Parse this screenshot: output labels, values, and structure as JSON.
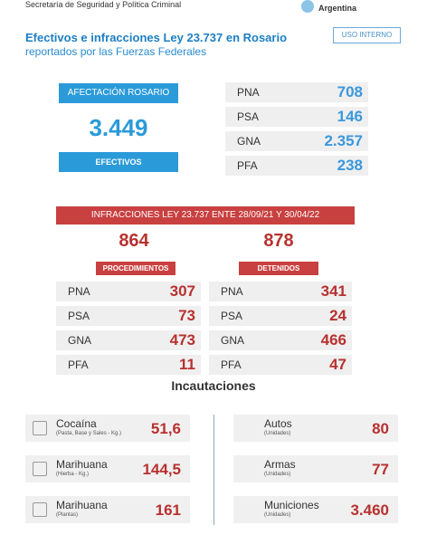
{
  "header": {
    "org": "Secretaría de Seguridad y Política Criminal",
    "logo": "Argentina"
  },
  "title": "Efectivos e infracciones Ley 23.737 en Rosario",
  "subtitle": "reportados por las Fuerzas Federales",
  "badge": "USO INTERNO",
  "afectacion": {
    "label": "AFECTACIÓN ROSARIO",
    "total": "3.449",
    "footer": "EFECTIVOS",
    "rows": [
      [
        "PNA",
        "708"
      ],
      [
        "PSA",
        "146"
      ],
      [
        "GNA",
        "2.357"
      ],
      [
        "PFA",
        "238"
      ]
    ]
  },
  "infracciones": {
    "banner": "INFRACCIONES LEY 23.737 ENTE 28/09/21 Y 30/04/22",
    "procedimientos": {
      "total": "864",
      "label": "PROCEDIMIENTOS",
      "rows": [
        [
          "PNA",
          "307"
        ],
        [
          "PSA",
          "73"
        ],
        [
          "GNA",
          "473"
        ],
        [
          "PFA",
          "11"
        ]
      ]
    },
    "detenidos": {
      "total": "878",
      "label": "DETENIDOS",
      "rows": [
        [
          "PNA",
          "341"
        ],
        [
          "PSA",
          "24"
        ],
        [
          "GNA",
          "466"
        ],
        [
          "PFA",
          "47"
        ]
      ]
    }
  },
  "incautaciones": {
    "title": "Incautaciones",
    "left": [
      {
        "name": "Cocaína",
        "unit": "(Pasta, Base y Sales - Kg.)",
        "value": "51,6"
      },
      {
        "name": "Marihuana",
        "unit": "(Hierba - Kg.)",
        "value": "144,5"
      },
      {
        "name": "Marihuana",
        "unit": "(Plantas)",
        "value": "161"
      }
    ],
    "right": [
      {
        "name": "Autos",
        "unit": "(Unidades)",
        "value": "80"
      },
      {
        "name": "Armas",
        "unit": "(Unidades)",
        "value": "77"
      },
      {
        "name": "Municiones",
        "unit": "(Unidades)",
        "value": "3.460"
      }
    ]
  }
}
